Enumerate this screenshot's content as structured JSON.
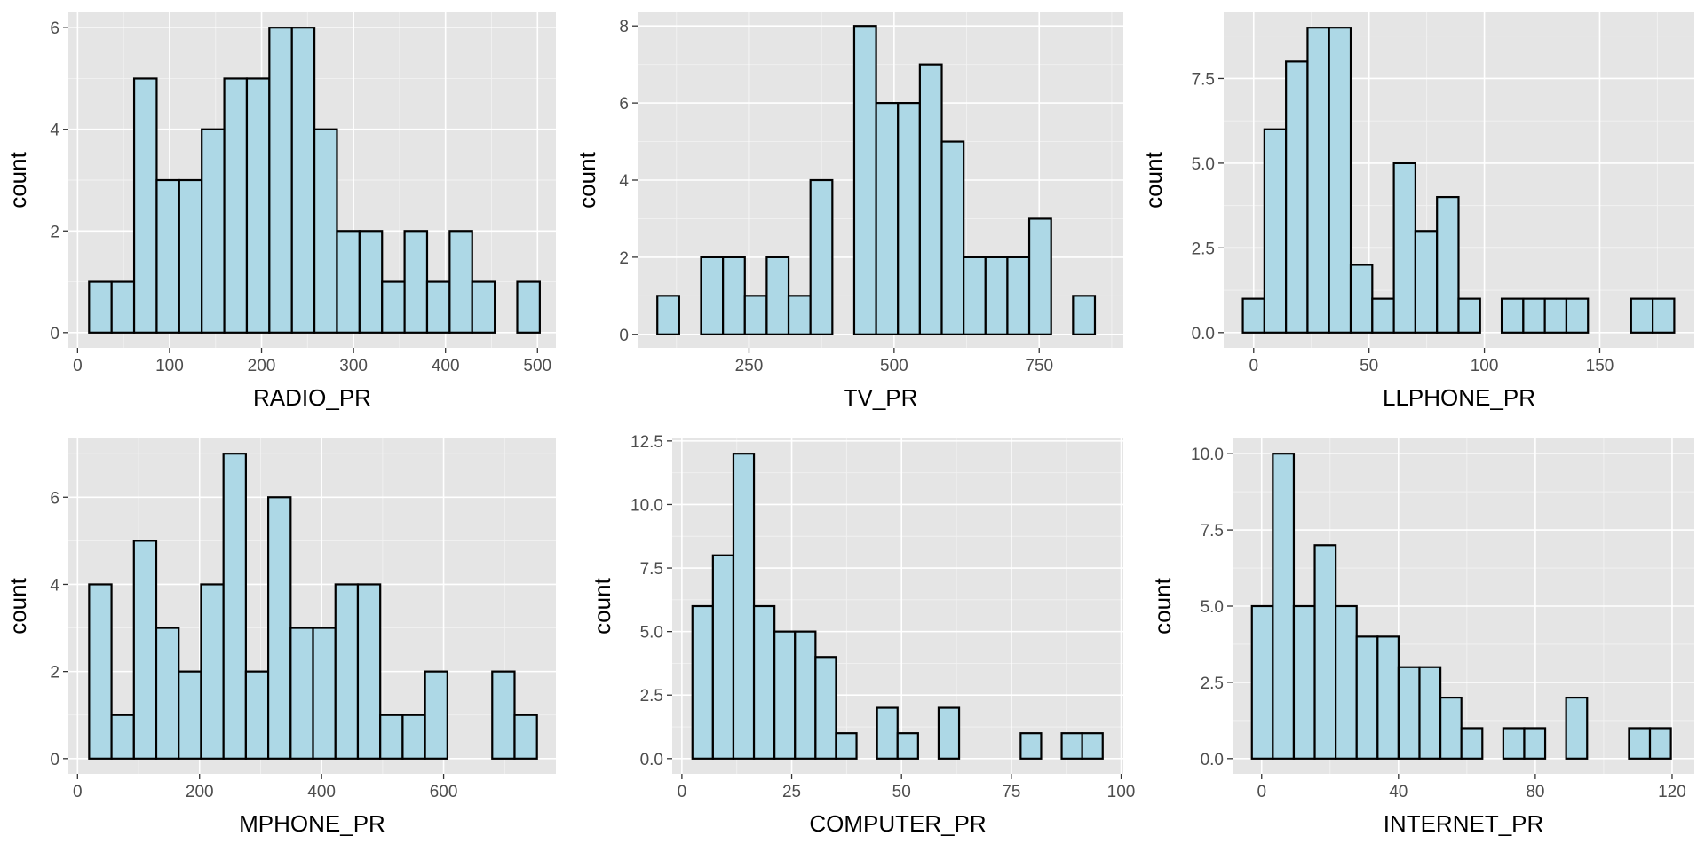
{
  "chart_data": [
    {
      "type": "bar",
      "variant": "histogram",
      "xlabel": "RADIO_PR",
      "ylabel": "count",
      "x_ticks": [
        "0",
        "100",
        "200",
        "300",
        "400",
        "500"
      ],
      "y_ticks": [
        "0",
        "2",
        "4",
        "6"
      ],
      "xlim": [
        -10,
        520
      ],
      "ylim": [
        -0.3,
        6.3
      ],
      "bin_start": 12.5,
      "bin_width": 24.5,
      "counts": [
        1,
        1,
        5,
        3,
        3,
        4,
        5,
        5,
        6,
        6,
        4,
        2,
        2,
        1,
        2,
        1,
        2,
        1,
        0,
        1
      ],
      "grid": true
    },
    {
      "type": "bar",
      "variant": "histogram",
      "xlabel": "TV_PR",
      "ylabel": "count",
      "x_ticks": [
        "250",
        "500",
        "750"
      ],
      "y_ticks": [
        "0",
        "2",
        "4",
        "6",
        "8"
      ],
      "xlim": [
        58,
        895
      ],
      "ylim": [
        -0.35,
        8.35
      ],
      "bin_start": 92,
      "bin_width": 37.7,
      "counts": [
        1,
        0,
        2,
        2,
        1,
        2,
        1,
        4,
        0,
        8,
        6,
        6,
        7,
        5,
        2,
        2,
        2,
        3,
        0,
        1
      ],
      "grid": true
    },
    {
      "type": "bar",
      "variant": "histogram",
      "xlabel": "LLPHONE_PR",
      "ylabel": "count",
      "x_ticks": [
        "0",
        "50",
        "100",
        "150"
      ],
      "y_ticks": [
        "0.0",
        "2.5",
        "5.0",
        "7.5"
      ],
      "xlim": [
        -13,
        191
      ],
      "ylim": [
        -0.45,
        9.45
      ],
      "bin_start": -4.7,
      "bin_width": 9.35,
      "counts": [
        1,
        6,
        8,
        9,
        9,
        2,
        1,
        5,
        3,
        4,
        1,
        0,
        1,
        1,
        1,
        1,
        0,
        0,
        1,
        1
      ],
      "grid": true
    },
    {
      "type": "bar",
      "variant": "histogram",
      "xlabel": "MPHONE_PR",
      "ylabel": "count",
      "x_ticks": [
        "0",
        "200",
        "400",
        "600"
      ],
      "y_ticks": [
        "0",
        "2",
        "4",
        "6"
      ],
      "xlim": [
        -15,
        784
      ],
      "ylim": [
        -0.35,
        7.35
      ],
      "bin_start": 19,
      "bin_width": 36.7,
      "counts": [
        4,
        1,
        5,
        3,
        2,
        4,
        7,
        2,
        6,
        3,
        3,
        4,
        4,
        1,
        1,
        2,
        0,
        0,
        2,
        1
      ],
      "grid": true
    },
    {
      "type": "bar",
      "variant": "histogram",
      "xlabel": "COMPUTER_PR",
      "ylabel": "count",
      "x_ticks": [
        "0",
        "25",
        "50",
        "75",
        "100"
      ],
      "y_ticks": [
        "0.0",
        "2.5",
        "5.0",
        "7.5",
        "10.0",
        "12.5"
      ],
      "xlim": [
        -2.2,
        100.5
      ],
      "ylim": [
        -0.6,
        12.6
      ],
      "bin_start": 2.4,
      "bin_width": 4.67,
      "counts": [
        6,
        8,
        12,
        6,
        5,
        5,
        4,
        1,
        0,
        2,
        1,
        0,
        2,
        0,
        0,
        0,
        1,
        0,
        1,
        1
      ],
      "grid": true
    },
    {
      "type": "bar",
      "variant": "histogram",
      "xlabel": "INTERNET_PR",
      "ylabel": "count",
      "x_ticks": [
        "0",
        "40",
        "80",
        "120"
      ],
      "y_ticks": [
        "0.0",
        "2.5",
        "5.0",
        "7.5",
        "10.0"
      ],
      "xlim": [
        -8.5,
        126.5
      ],
      "ylim": [
        -0.5,
        10.5
      ],
      "bin_start": -2.85,
      "bin_width": 6.125,
      "counts": [
        5,
        10,
        5,
        7,
        5,
        4,
        4,
        3,
        3,
        2,
        1,
        0,
        1,
        1,
        0,
        2,
        0,
        0,
        1,
        1
      ],
      "grid": true
    }
  ]
}
